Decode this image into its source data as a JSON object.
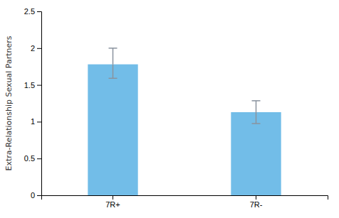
{
  "chart_data": {
    "type": "bar",
    "categories": [
      "7R+",
      "7R-"
    ],
    "values": [
      1.78,
      1.13
    ],
    "errors_up": [
      0.22,
      0.155
    ],
    "errors_down": [
      0.19,
      0.155
    ],
    "color": "#72BDE8",
    "ylabel": "Extra-Relationship Sexual Partners",
    "ylim": [
      0,
      2.5
    ],
    "yticks": [
      0,
      0.5,
      1,
      1.5,
      2,
      2.5
    ],
    "grid": false
  }
}
